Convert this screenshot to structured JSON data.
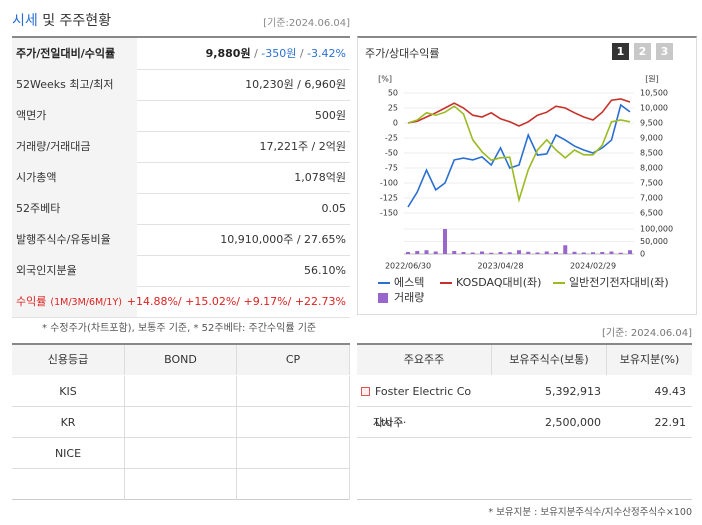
{
  "header": {
    "title_main": "시세",
    "title_rest": "및 주주현황",
    "date": "[기준:2024.06.04]"
  },
  "quote_table": {
    "rows": [
      {
        "label": "주가/전일대비/수익률",
        "value_parts": [
          "9,880원",
          " / ",
          "-350원",
          " / ",
          "-3.42%"
        ]
      },
      {
        "label": "52Weeks 최고/최저",
        "value_parts": [
          "10,230원 / 6,960원"
        ]
      },
      {
        "label": "액면가",
        "value_parts": [
          "500원"
        ]
      },
      {
        "label": "거래량/거래대금",
        "value_parts": [
          "17,221주 / 2억원"
        ]
      },
      {
        "label": "시가총액",
        "value_parts": [
          "1,078억원"
        ]
      },
      {
        "label": "52주베타",
        "value_parts": [
          "0.05"
        ]
      },
      {
        "label": "발행주식수/유동비율",
        "value_parts": [
          "10,910,000주 / 27.65%"
        ]
      },
      {
        "label": "외국인지분율",
        "value_parts": [
          "56.10%"
        ]
      },
      {
        "label": "수익률",
        "sublabel": "(1M/3M/6M/1Y)",
        "value_parts": [
          "+14.88%/ +15.02%/ +9.17%/ +22.73%"
        ]
      }
    ]
  },
  "note": "* 수정주가(차트포함), 보통주 기준, * 52주베타: 주간수익률 기준",
  "chart_panel": {
    "title": "주가/상대수익률",
    "tabs": [
      "1",
      "2",
      "3"
    ]
  },
  "chart_data": {
    "type": "line",
    "y_unit": "[%]",
    "y2_unit": "[원]",
    "categories": [
      "2022/06/30",
      null,
      null,
      null,
      null,
      null,
      null,
      null,
      null,
      null,
      "2023/04/28",
      null,
      null,
      null,
      null,
      null,
      null,
      null,
      null,
      null,
      "2024/02/29",
      null,
      null,
      null,
      null
    ],
    "ylim": [
      -150,
      50
    ],
    "yticks": [
      50,
      25,
      0,
      -25,
      -50,
      -75,
      -100,
      -125,
      -150
    ],
    "y2lim": [
      6500,
      10500
    ],
    "y2ticks": [
      {
        "value": 10500,
        "label": "10,500"
      },
      {
        "value": 10000,
        "label": "10,000"
      },
      {
        "value": 9500,
        "label": "9,500"
      },
      {
        "value": 9000,
        "label": "9,000"
      },
      {
        "value": 8500,
        "label": "8,500"
      },
      {
        "value": 8000,
        "label": "8,000"
      },
      {
        "value": 7500,
        "label": "7,500"
      },
      {
        "value": 7000,
        "label": "7,000"
      },
      {
        "value": 6500,
        "label": "6,500"
      }
    ],
    "y3lim": [
      0,
      100000
    ],
    "y3ticks": [
      {
        "value": 100000,
        "label": "100,000"
      },
      {
        "value": 50000,
        "label": "50,000"
      },
      0
    ],
    "grid": true,
    "series": [
      {
        "name": "에스텍",
        "color": "#2a6fd1",
        "axis": "y2",
        "values": [
          6700,
          7200,
          7930,
          7270,
          7500,
          8270,
          8330,
          8270,
          8370,
          8100,
          8670,
          8000,
          8100,
          9100,
          8430,
          8470,
          9100,
          8930,
          8730,
          8600,
          8500,
          8670,
          8930,
          10100,
          9870
        ]
      },
      {
        "name": "KOSDAQ대비(좌)",
        "color": "#c8312b",
        "values": [
          0,
          3,
          10,
          17,
          25,
          33,
          25,
          13,
          10,
          17,
          7,
          2,
          -5,
          2,
          13,
          18,
          28,
          25,
          17,
          10,
          5,
          18,
          38,
          40,
          35
        ]
      },
      {
        "name": "일반전기전자대비(좌)",
        "color": "#9bbb22",
        "values": [
          0,
          5,
          17,
          13,
          18,
          28,
          15,
          -28,
          -48,
          -62,
          -58,
          -57,
          -128,
          -78,
          -45,
          -28,
          -45,
          -58,
          -45,
          -53,
          -53,
          -37,
          2,
          5,
          2
        ]
      },
      {
        "name": "거래량",
        "color": "#9966cc",
        "axis": "y3",
        "kind": "bar",
        "values": [
          8000,
          12000,
          15000,
          10000,
          100000,
          12000,
          8000,
          6000,
          10000,
          5000,
          8000,
          7000,
          15000,
          9000,
          6000,
          10000,
          8000,
          35000,
          9000,
          6000,
          7000,
          8000,
          10000,
          5000,
          15000
        ]
      }
    ]
  },
  "date2": "[기준: 2024.06.04]",
  "credit_table": {
    "headers": [
      "신용등급",
      "BOND",
      "CP"
    ],
    "rows": [
      "KIS",
      "KR",
      "NICE"
    ]
  },
  "holders_table": {
    "headers": [
      "주요주주",
      "보유주식수(보통)",
      "보유지분(%)"
    ],
    "rows": [
      [
        "Foster Electric Co Ltd ···",
        "5,392,913",
        "49.43"
      ],
      [
        "자사주",
        "2,500,000",
        "22.91"
      ]
    ]
  },
  "footnote": "* 보유지분 : 보유지분주식수/지수산정주식수×100"
}
